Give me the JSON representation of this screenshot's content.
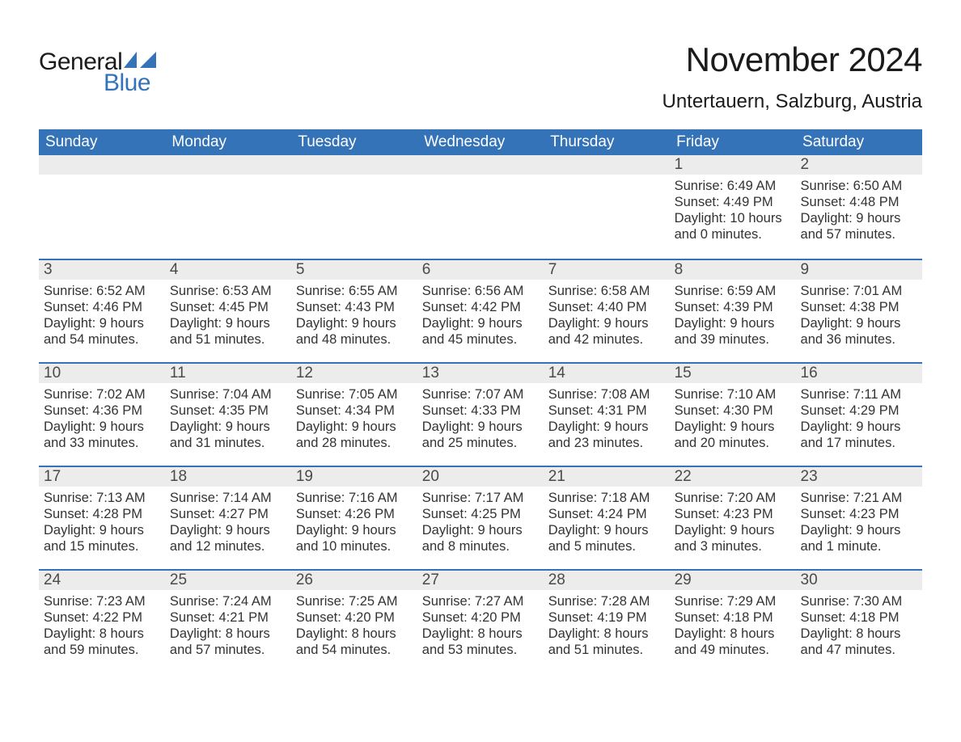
{
  "brand": {
    "part1": "General",
    "part2": "Blue",
    "sail_color": "#3573b9"
  },
  "title": "November 2024",
  "location": "Untertauern, Salzburg, Austria",
  "colors": {
    "header_bg": "#3573b9",
    "header_text": "#ffffff",
    "daynum_bg": "#ececec",
    "row_border": "#3573b9",
    "body_text": "#333333",
    "page_bg": "#ffffff"
  },
  "fonts": {
    "title_size_pt": 32,
    "location_size_pt": 18,
    "header_size_pt": 14,
    "daynum_size_pt": 14,
    "body_size_pt": 12
  },
  "day_headers": [
    "Sunday",
    "Monday",
    "Tuesday",
    "Wednesday",
    "Thursday",
    "Friday",
    "Saturday"
  ],
  "labels": {
    "sunrise": "Sunrise:",
    "sunset": "Sunset:",
    "daylight": "Daylight:"
  },
  "weeks": [
    [
      null,
      null,
      null,
      null,
      null,
      {
        "n": "1",
        "sunrise": "6:49 AM",
        "sunset": "4:49 PM",
        "daylight": "10 hours and 0 minutes."
      },
      {
        "n": "2",
        "sunrise": "6:50 AM",
        "sunset": "4:48 PM",
        "daylight": "9 hours and 57 minutes."
      }
    ],
    [
      {
        "n": "3",
        "sunrise": "6:52 AM",
        "sunset": "4:46 PM",
        "daylight": "9 hours and 54 minutes."
      },
      {
        "n": "4",
        "sunrise": "6:53 AM",
        "sunset": "4:45 PM",
        "daylight": "9 hours and 51 minutes."
      },
      {
        "n": "5",
        "sunrise": "6:55 AM",
        "sunset": "4:43 PM",
        "daylight": "9 hours and 48 minutes."
      },
      {
        "n": "6",
        "sunrise": "6:56 AM",
        "sunset": "4:42 PM",
        "daylight": "9 hours and 45 minutes."
      },
      {
        "n": "7",
        "sunrise": "6:58 AM",
        "sunset": "4:40 PM",
        "daylight": "9 hours and 42 minutes."
      },
      {
        "n": "8",
        "sunrise": "6:59 AM",
        "sunset": "4:39 PM",
        "daylight": "9 hours and 39 minutes."
      },
      {
        "n": "9",
        "sunrise": "7:01 AM",
        "sunset": "4:38 PM",
        "daylight": "9 hours and 36 minutes."
      }
    ],
    [
      {
        "n": "10",
        "sunrise": "7:02 AM",
        "sunset": "4:36 PM",
        "daylight": "9 hours and 33 minutes."
      },
      {
        "n": "11",
        "sunrise": "7:04 AM",
        "sunset": "4:35 PM",
        "daylight": "9 hours and 31 minutes."
      },
      {
        "n": "12",
        "sunrise": "7:05 AM",
        "sunset": "4:34 PM",
        "daylight": "9 hours and 28 minutes."
      },
      {
        "n": "13",
        "sunrise": "7:07 AM",
        "sunset": "4:33 PM",
        "daylight": "9 hours and 25 minutes."
      },
      {
        "n": "14",
        "sunrise": "7:08 AM",
        "sunset": "4:31 PM",
        "daylight": "9 hours and 23 minutes."
      },
      {
        "n": "15",
        "sunrise": "7:10 AM",
        "sunset": "4:30 PM",
        "daylight": "9 hours and 20 minutes."
      },
      {
        "n": "16",
        "sunrise": "7:11 AM",
        "sunset": "4:29 PM",
        "daylight": "9 hours and 17 minutes."
      }
    ],
    [
      {
        "n": "17",
        "sunrise": "7:13 AM",
        "sunset": "4:28 PM",
        "daylight": "9 hours and 15 minutes."
      },
      {
        "n": "18",
        "sunrise": "7:14 AM",
        "sunset": "4:27 PM",
        "daylight": "9 hours and 12 minutes."
      },
      {
        "n": "19",
        "sunrise": "7:16 AM",
        "sunset": "4:26 PM",
        "daylight": "9 hours and 10 minutes."
      },
      {
        "n": "20",
        "sunrise": "7:17 AM",
        "sunset": "4:25 PM",
        "daylight": "9 hours and 8 minutes."
      },
      {
        "n": "21",
        "sunrise": "7:18 AM",
        "sunset": "4:24 PM",
        "daylight": "9 hours and 5 minutes."
      },
      {
        "n": "22",
        "sunrise": "7:20 AM",
        "sunset": "4:23 PM",
        "daylight": "9 hours and 3 minutes."
      },
      {
        "n": "23",
        "sunrise": "7:21 AM",
        "sunset": "4:23 PM",
        "daylight": "9 hours and 1 minute."
      }
    ],
    [
      {
        "n": "24",
        "sunrise": "7:23 AM",
        "sunset": "4:22 PM",
        "daylight": "8 hours and 59 minutes."
      },
      {
        "n": "25",
        "sunrise": "7:24 AM",
        "sunset": "4:21 PM",
        "daylight": "8 hours and 57 minutes."
      },
      {
        "n": "26",
        "sunrise": "7:25 AM",
        "sunset": "4:20 PM",
        "daylight": "8 hours and 54 minutes."
      },
      {
        "n": "27",
        "sunrise": "7:27 AM",
        "sunset": "4:20 PM",
        "daylight": "8 hours and 53 minutes."
      },
      {
        "n": "28",
        "sunrise": "7:28 AM",
        "sunset": "4:19 PM",
        "daylight": "8 hours and 51 minutes."
      },
      {
        "n": "29",
        "sunrise": "7:29 AM",
        "sunset": "4:18 PM",
        "daylight": "8 hours and 49 minutes."
      },
      {
        "n": "30",
        "sunrise": "7:30 AM",
        "sunset": "4:18 PM",
        "daylight": "8 hours and 47 minutes."
      }
    ]
  ]
}
